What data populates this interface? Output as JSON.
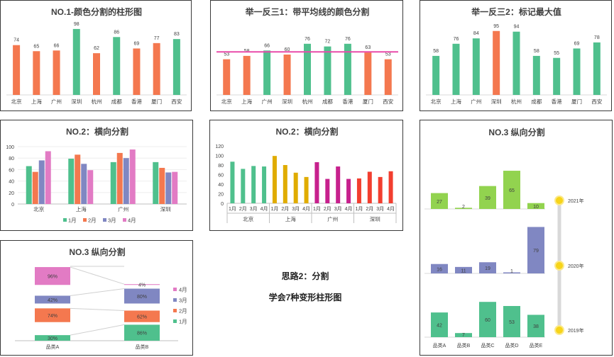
{
  "colors": {
    "orange": "#f4784f",
    "green": "#4fc08d",
    "purple": "#8087c2",
    "pink": "#e27bc4",
    "gold": "#e0ac00",
    "magenta": "#c7218d",
    "red": "#f23e2f",
    "lime": "#92d34f",
    "sun": "#f7d419",
    "avgline": "#e94caa"
  },
  "center": {
    "line1": "思路2：分割",
    "line2": "学会7种变形柱形图"
  },
  "chart_data": [
    {
      "id": "p1",
      "type": "bar",
      "title": "NO.1-颜色分割的柱形图",
      "categories": [
        "北京",
        "上海",
        "广州",
        "深圳",
        "杭州",
        "成都",
        "香港",
        "厦门",
        "西安"
      ],
      "values": [
        74,
        65,
        66,
        98,
        62,
        86,
        69,
        77,
        83
      ]
    },
    {
      "id": "p2",
      "type": "bar",
      "title": "举一反三1：带平均线的颜色分割",
      "categories": [
        "北京",
        "上海",
        "广州",
        "深圳",
        "杭州",
        "成都",
        "香港",
        "厦门",
        "西安"
      ],
      "values": [
        53,
        58,
        66,
        60,
        76,
        72,
        76,
        63,
        53
      ],
      "average": 64
    },
    {
      "id": "p3",
      "type": "bar",
      "title": "举一反三2：标记最大值",
      "categories": [
        "北京",
        "上海",
        "广州",
        "深圳",
        "杭州",
        "成都",
        "香港",
        "厦门",
        "西安"
      ],
      "values": [
        58,
        76,
        84,
        95,
        94,
        58,
        55,
        69,
        78
      ]
    },
    {
      "id": "p4",
      "type": "bar",
      "title": "NO.2：横向分割",
      "categories": [
        "北京",
        "上海",
        "广州",
        "深圳"
      ],
      "ylim": [
        0,
        100
      ],
      "yticks": [
        0,
        20,
        40,
        60,
        80,
        100
      ],
      "series": [
        {
          "name": "1月",
          "values": [
            66,
            79,
            73,
            73
          ]
        },
        {
          "name": "2月",
          "values": [
            56,
            86,
            89,
            63
          ]
        },
        {
          "name": "3月",
          "values": [
            76,
            70,
            80,
            55
          ]
        },
        {
          "name": "4月",
          "values": [
            92,
            59,
            95,
            56
          ]
        }
      ]
    },
    {
      "id": "p5",
      "type": "bar",
      "title": "NO.2：横向分割",
      "categories": [
        "北京",
        "上海",
        "广州",
        "深圳"
      ],
      "months": [
        "1月",
        "2月",
        "3月",
        "4月"
      ],
      "ylim": [
        0,
        120
      ],
      "yticks": [
        0,
        20,
        40,
        60,
        80,
        100,
        120
      ],
      "values": [
        [
          87,
          72,
          78,
          77
        ],
        [
          99,
          80,
          64,
          55
        ],
        [
          86,
          51,
          77,
          51
        ],
        [
          52,
          66,
          55,
          67
        ]
      ]
    },
    {
      "id": "p6",
      "type": "bar",
      "title": "NO.3 纵向分割",
      "categories": [
        "品类A",
        "品类B",
        "品类C",
        "品类D",
        "品类E"
      ],
      "rows": [
        {
          "name": "2021年",
          "values": [
            27,
            2,
            39,
            65,
            10
          ]
        },
        {
          "name": "2020年",
          "values": [
            16,
            11,
            19,
            1,
            79
          ]
        },
        {
          "name": "2019年",
          "values": [
            42,
            7,
            60,
            53,
            38
          ]
        }
      ]
    },
    {
      "id": "p7",
      "type": "bar",
      "title": "NO.3 纵向分割",
      "categories": [
        "品类A",
        "品类B"
      ],
      "series": [
        {
          "name": "1月",
          "values": [
            30,
            86
          ]
        },
        {
          "name": "2月",
          "values": [
            74,
            62
          ]
        },
        {
          "name": "3月",
          "values": [
            42,
            80
          ]
        },
        {
          "name": "4月",
          "values": [
            96,
            4
          ]
        }
      ]
    }
  ]
}
